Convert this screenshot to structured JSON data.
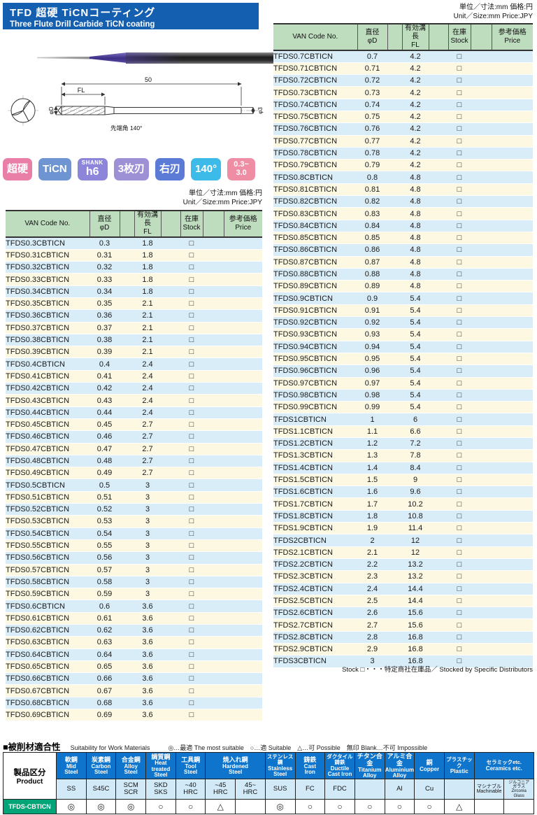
{
  "page": {
    "title_jp": "TFD 超硬 TiCNコーティング",
    "title_en": "Three Flute Drill  Carbide  TiCN coating",
    "title_bg": "#155fb0",
    "unit_note_jp": "単位／寸法:mm 価格:円",
    "unit_note_en": "Unit／Size:mm Price:JPY",
    "stock_note": "Stock □・・・特定商社在庫品／ Stocked by Specific Distributors"
  },
  "badges": [
    {
      "label": "超硬",
      "color": "#e97fa7"
    },
    {
      "label": "TiCN",
      "color": "#6e95d2"
    },
    {
      "top": "SHANK",
      "label": "h6",
      "color": "#8d85d9",
      "kind": "shank"
    },
    {
      "label": "3枚刃",
      "color": "#9e90d5"
    },
    {
      "label": "右刃",
      "color": "#5c7bd7"
    },
    {
      "label": "140°",
      "color": "#3dbbe8"
    },
    {
      "top": "0.3~",
      "label": "3.0",
      "color": "#ef8da4",
      "kind": "range"
    }
  ],
  "diagram": {
    "overall": "50",
    "flute": "FL",
    "dia": "φD",
    "shank_dia": "φ3",
    "point_angle": "先端角 140°"
  },
  "table_headers": {
    "van": "VAN Code No.",
    "dia_jp": "直径",
    "dia_sym": "φD",
    "fl_jp": "有効溝長",
    "fl_sym": "FL",
    "stock_jp": "在庫",
    "stock_en": "Stock",
    "price_jp": "参考価格",
    "price_en": "Price"
  },
  "stock_symbol": "□",
  "left_rows": [
    [
      "TFDS0.3CBTICN",
      "0.3",
      "1.8"
    ],
    [
      "TFDS0.31CBTICN",
      "0.31",
      "1.8"
    ],
    [
      "TFDS0.32CBTICN",
      "0.32",
      "1.8"
    ],
    [
      "TFDS0.33CBTICN",
      "0.33",
      "1.8"
    ],
    [
      "TFDS0.34CBTICN",
      "0.34",
      "1.8"
    ],
    [
      "TFDS0.35CBTICN",
      "0.35",
      "2.1"
    ],
    [
      "TFDS0.36CBTICN",
      "0.36",
      "2.1"
    ],
    [
      "TFDS0.37CBTICN",
      "0.37",
      "2.1"
    ],
    [
      "TFDS0.38CBTICN",
      "0.38",
      "2.1"
    ],
    [
      "TFDS0.39CBTICN",
      "0.39",
      "2.1"
    ],
    [
      "TFDS0.4CBTICN",
      "0.4",
      "2.4"
    ],
    [
      "TFDS0.41CBTICN",
      "0.41",
      "2.4"
    ],
    [
      "TFDS0.42CBTICN",
      "0.42",
      "2.4"
    ],
    [
      "TFDS0.43CBTICN",
      "0.43",
      "2.4"
    ],
    [
      "TFDS0.44CBTICN",
      "0.44",
      "2.4"
    ],
    [
      "TFDS0.45CBTICN",
      "0.45",
      "2.7"
    ],
    [
      "TFDS0.46CBTICN",
      "0.46",
      "2.7"
    ],
    [
      "TFDS0.47CBTICN",
      "0.47",
      "2.7"
    ],
    [
      "TFDS0.48CBTICN",
      "0.48",
      "2.7"
    ],
    [
      "TFDS0.49CBTICN",
      "0.49",
      "2.7"
    ],
    [
      "TFDS0.5CBTICN",
      "0.5",
      "3"
    ],
    [
      "TFDS0.51CBTICN",
      "0.51",
      "3"
    ],
    [
      "TFDS0.52CBTICN",
      "0.52",
      "3"
    ],
    [
      "TFDS0.53CBTICN",
      "0.53",
      "3"
    ],
    [
      "TFDS0.54CBTICN",
      "0.54",
      "3"
    ],
    [
      "TFDS0.55CBTICN",
      "0.55",
      "3"
    ],
    [
      "TFDS0.56CBTICN",
      "0.56",
      "3"
    ],
    [
      "TFDS0.57CBTICN",
      "0.57",
      "3"
    ],
    [
      "TFDS0.58CBTICN",
      "0.58",
      "3"
    ],
    [
      "TFDS0.59CBTICN",
      "0.59",
      "3"
    ],
    [
      "TFDS0.6CBTICN",
      "0.6",
      "3.6"
    ],
    [
      "TFDS0.61CBTICN",
      "0.61",
      "3.6"
    ],
    [
      "TFDS0.62CBTICN",
      "0.62",
      "3.6"
    ],
    [
      "TFDS0.63CBTICN",
      "0.63",
      "3.6"
    ],
    [
      "TFDS0.64CBTICN",
      "0.64",
      "3.6"
    ],
    [
      "TFDS0.65CBTICN",
      "0.65",
      "3.6"
    ],
    [
      "TFDS0.66CBTICN",
      "0.66",
      "3.6"
    ],
    [
      "TFDS0.67CBTICN",
      "0.67",
      "3.6"
    ],
    [
      "TFDS0.68CBTICN",
      "0.68",
      "3.6"
    ],
    [
      "TFDS0.69CBTICN",
      "0.69",
      "3.6"
    ]
  ],
  "right_rows": [
    [
      "TFDS0.7CBTICN",
      "0.7",
      "4.2"
    ],
    [
      "TFDS0.71CBTICN",
      "0.71",
      "4.2"
    ],
    [
      "TFDS0.72CBTICN",
      "0.72",
      "4.2"
    ],
    [
      "TFDS0.73CBTICN",
      "0.73",
      "4.2"
    ],
    [
      "TFDS0.74CBTICN",
      "0.74",
      "4.2"
    ],
    [
      "TFDS0.75CBTICN",
      "0.75",
      "4.2"
    ],
    [
      "TFDS0.76CBTICN",
      "0.76",
      "4.2"
    ],
    [
      "TFDS0.77CBTICN",
      "0.77",
      "4.2"
    ],
    [
      "TFDS0.78CBTICN",
      "0.78",
      "4.2"
    ],
    [
      "TFDS0.79CBTICN",
      "0.79",
      "4.2"
    ],
    [
      "TFDS0.8CBTICN",
      "0.8",
      "4.8"
    ],
    [
      "TFDS0.81CBTICN",
      "0.81",
      "4.8"
    ],
    [
      "TFDS0.82CBTICN",
      "0.82",
      "4.8"
    ],
    [
      "TFDS0.83CBTICN",
      "0.83",
      "4.8"
    ],
    [
      "TFDS0.84CBTICN",
      "0.84",
      "4.8"
    ],
    [
      "TFDS0.85CBTICN",
      "0.85",
      "4.8"
    ],
    [
      "TFDS0.86CBTICN",
      "0.86",
      "4.8"
    ],
    [
      "TFDS0.87CBTICN",
      "0.87",
      "4.8"
    ],
    [
      "TFDS0.88CBTICN",
      "0.88",
      "4.8"
    ],
    [
      "TFDS0.89CBTICN",
      "0.89",
      "4.8"
    ],
    [
      "TFDS0.9CBTICN",
      "0.9",
      "5.4"
    ],
    [
      "TFDS0.91CBTICN",
      "0.91",
      "5.4"
    ],
    [
      "TFDS0.92CBTICN",
      "0.92",
      "5.4"
    ],
    [
      "TFDS0.93CBTICN",
      "0.93",
      "5.4"
    ],
    [
      "TFDS0.94CBTICN",
      "0.94",
      "5.4"
    ],
    [
      "TFDS0.95CBTICN",
      "0.95",
      "5.4"
    ],
    [
      "TFDS0.96CBTICN",
      "0.96",
      "5.4"
    ],
    [
      "TFDS0.97CBTICN",
      "0.97",
      "5.4"
    ],
    [
      "TFDS0.98CBTICN",
      "0.98",
      "5.4"
    ],
    [
      "TFDS0.99CBTICN",
      "0.99",
      "5.4"
    ],
    [
      "TFDS1CBTICN",
      "1",
      "6"
    ],
    [
      "TFDS1.1CBTICN",
      "1.1",
      "6.6"
    ],
    [
      "TFDS1.2CBTICN",
      "1.2",
      "7.2"
    ],
    [
      "TFDS1.3CBTICN",
      "1.3",
      "7.8"
    ],
    [
      "TFDS1.4CBTICN",
      "1.4",
      "8.4"
    ],
    [
      "TFDS1.5CBTICN",
      "1.5",
      "9"
    ],
    [
      "TFDS1.6CBTICN",
      "1.6",
      "9.6"
    ],
    [
      "TFDS1.7CBTICN",
      "1.7",
      "10.2"
    ],
    [
      "TFDS1.8CBTICN",
      "1.8",
      "10.8"
    ],
    [
      "TFDS1.9CBTICN",
      "1.9",
      "11.4"
    ],
    [
      "TFDS2CBTICN",
      "2",
      "12"
    ],
    [
      "TFDS2.1CBTICN",
      "2.1",
      "12"
    ],
    [
      "TFDS2.2CBTICN",
      "2.2",
      "13.2"
    ],
    [
      "TFDS2.3CBTICN",
      "2.3",
      "13.2"
    ],
    [
      "TFDS2.4CBTICN",
      "2.4",
      "14.4"
    ],
    [
      "TFDS2.5CBTICN",
      "2.5",
      "14.4"
    ],
    [
      "TFDS2.6CBTICN",
      "2.6",
      "15.6"
    ],
    [
      "TFDS2.7CBTICN",
      "2.7",
      "15.6"
    ],
    [
      "TFDS2.8CBTICN",
      "2.8",
      "16.8"
    ],
    [
      "TFDS2.9CBTICN",
      "2.9",
      "16.8"
    ],
    [
      "TFDS3CBTICN",
      "3",
      "16.8"
    ]
  ],
  "suitability": {
    "title_jp": "■被削材適合性",
    "title_en": "Suitability for Work Materials",
    "legend": "◎…最適 The most suitable　○…適 Suitable　△…可 Possible　無印 Blank…不可 Impossible",
    "product_label_jp": "製品区分",
    "product_label_en": "Product",
    "product_code": "TFDS-CBTICN",
    "code_color": "#00a577",
    "header_color": "#0f74cc",
    "columns": [
      {
        "jp": "軟鋼",
        "en": [
          "Mid",
          "Steel"
        ],
        "subs": [
          [
            "SS"
          ]
        ]
      },
      {
        "jp": "炭素鋼",
        "en": [
          "Carbon",
          "Steel"
        ],
        "subs": [
          [
            "S45C"
          ]
        ]
      },
      {
        "jp": "合金鋼",
        "en": [
          "Alloy",
          "Steel"
        ],
        "subs": [
          [
            "SCM",
            "SCR"
          ]
        ]
      },
      {
        "jp": "調質鋼",
        "en": [
          "Heat treated",
          "Steel"
        ],
        "subs": [
          [
            "SKD",
            "SKS"
          ]
        ]
      },
      {
        "jp": "工具鋼",
        "en": [
          "Tool",
          "Steel"
        ],
        "subs": [
          [
            "~40",
            "HRC"
          ]
        ]
      },
      {
        "jp": "焼入れ鋼",
        "en": [
          "Hardened",
          "Steel"
        ],
        "subs": [
          [
            "~45",
            "HRC"
          ],
          [
            "45~",
            "HRC"
          ]
        ]
      },
      {
        "jp": "ステンレス鋼",
        "en": [
          "Stainless",
          "Steel"
        ],
        "subs": [
          [
            "SUS"
          ]
        ]
      },
      {
        "jp": "鋳鉄",
        "en": [
          "Cast",
          "Iron"
        ],
        "subs": [
          [
            "FC"
          ]
        ]
      },
      {
        "jp": "ダクタイル鋳鉄",
        "en": [
          "Ductile",
          "Cast Iron"
        ],
        "subs": [
          [
            "FDC"
          ]
        ]
      },
      {
        "jp": "チタン合金",
        "en": [
          "Titanium",
          "Alloy"
        ],
        "subs": [
          [
            ""
          ]
        ]
      },
      {
        "jp": "アルミ合金",
        "en": [
          "Aluminium",
          "Alloy"
        ],
        "subs": [
          [
            "Al"
          ]
        ]
      },
      {
        "jp": "銅",
        "en": [
          "Copper"
        ],
        "subs": [
          [
            "Cu"
          ]
        ]
      },
      {
        "jp": "プラスチック",
        "en": [
          "Plastic"
        ],
        "subs": [
          [
            ""
          ]
        ]
      },
      {
        "jp": "セラミックetc.",
        "en": [
          "Ceramics etc."
        ],
        "subs": [
          [
            "マシナブル",
            "Machinable"
          ],
          [
            "ジルコニア",
            "ガラス",
            "Zirconia",
            "Glass"
          ]
        ]
      }
    ],
    "ratings": [
      "◎",
      "◎",
      "◎",
      "○",
      "○",
      "△",
      "",
      "◎",
      "○",
      "○",
      "○",
      "○",
      "○",
      "△",
      "",
      ""
    ]
  }
}
